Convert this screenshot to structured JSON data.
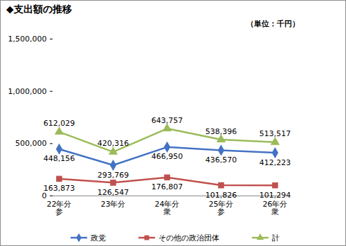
{
  "chart_data": {
    "type": "line",
    "title": "◆支出額の推移",
    "subtitle": "（単位：千円）",
    "categories": [
      "22年分\n参",
      "23年分",
      "24年分\n衆",
      "25年分\n参",
      "26年分\n衆"
    ],
    "series": [
      {
        "name": "政党",
        "color": "#4472C4",
        "marker": "diamond",
        "values": [
          448156,
          293769,
          466950,
          436570,
          412223
        ],
        "value_labels": [
          "448,156",
          "293,769",
          "466,950",
          "436,570",
          "412,223"
        ]
      },
      {
        "name": "その他の政治団体",
        "color": "#C0504D",
        "marker": "square",
        "values": [
          163873,
          126547,
          176807,
          101826,
          101294
        ],
        "value_labels": [
          "163,873",
          "126,547",
          "176,807",
          "101,826",
          "101,294"
        ]
      },
      {
        "name": "計",
        "color": "#9BBB59",
        "marker": "triangle",
        "values": [
          612029,
          420316,
          643757,
          538396,
          513517
        ],
        "value_labels": [
          "612,029",
          "420,316",
          "643,757",
          "538,396",
          "513,517"
        ]
      }
    ],
    "ylim": [
      0,
      1500000
    ],
    "yticks": [
      0,
      {
        "value": 500000,
        "label": "500,000"
      },
      {
        "value": 1000000,
        "label": "1,000,000"
      },
      {
        "value": 1500000,
        "label": "1,500,000"
      }
    ],
    "grid": false,
    "data_labels": true,
    "legend": "bottom"
  }
}
